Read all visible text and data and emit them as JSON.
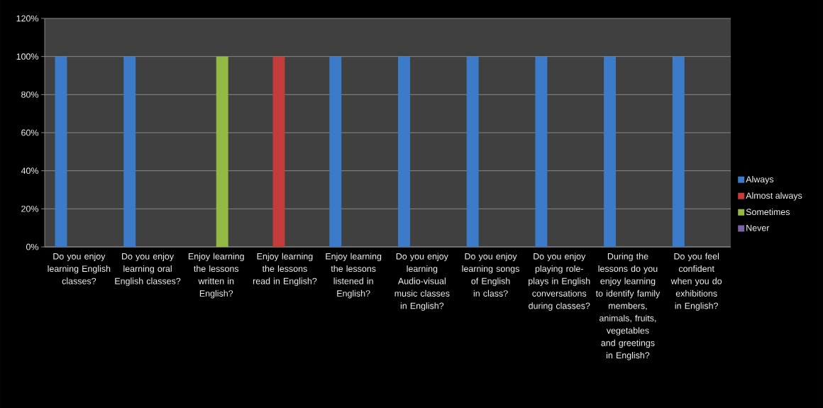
{
  "chart_data": {
    "type": "bar",
    "categories": [
      "Do you enjoy learning English classes?",
      "Do you enjoy learning oral English classes?",
      "Enjoy learning the lessons written in English?",
      "Enjoy learning the lessons read in English?",
      "Enjoy learning the lessons listened in English?",
      "Do you enjoy learning Audio-visual music classes in English?",
      "Do you enjoy learning songs of English in class?",
      "Do you enjoy playing role-plays in English conversations during classes?",
      "During the lessons do you enjoy learning to identify family members, animals, fruits, vegetables and greetings in English?",
      "Do you feel confident when you do exhibitions in English?"
    ],
    "series": [
      {
        "name": "Always",
        "color": "#3c7bca",
        "values": [
          100,
          100,
          0,
          0,
          100,
          100,
          100,
          100,
          100,
          100
        ]
      },
      {
        "name": "Almost always",
        "color": "#c33b3b",
        "values": [
          0,
          0,
          0,
          100,
          0,
          0,
          0,
          0,
          0,
          0
        ]
      },
      {
        "name": "Sometimes",
        "color": "#93b843",
        "values": [
          0,
          0,
          100,
          0,
          0,
          0,
          0,
          0,
          0,
          0
        ]
      },
      {
        "name": "Never",
        "color": "#7f62a9",
        "values": [
          0,
          0,
          0,
          0,
          0,
          0,
          0,
          0,
          0,
          0
        ]
      }
    ],
    "ylim": [
      0,
      120
    ],
    "yticks": [
      {
        "value": 0,
        "label": "0%"
      },
      {
        "value": 20,
        "label": "20%"
      },
      {
        "value": 40,
        "label": "40%"
      },
      {
        "value": 60,
        "label": "60%"
      },
      {
        "value": 80,
        "label": "80%"
      },
      {
        "value": 100,
        "label": "100%"
      },
      {
        "value": 120,
        "label": "120%"
      }
    ],
    "grid": "y",
    "legend": "right"
  }
}
